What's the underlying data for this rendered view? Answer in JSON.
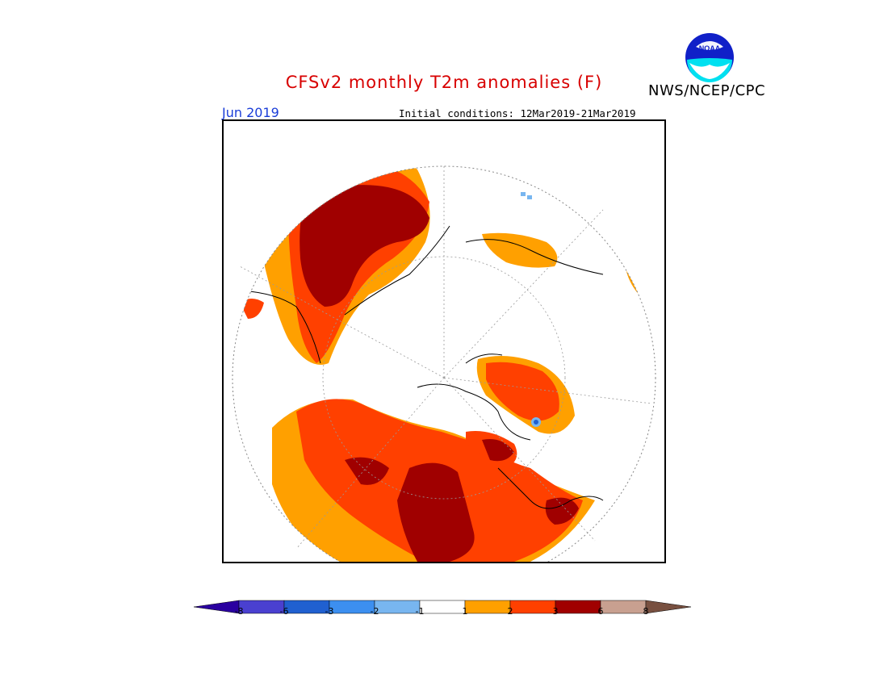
{
  "header": {
    "title": "CFSv2 monthly T2m anomalies (F)",
    "org": "NWS/NCEP/CPC",
    "period": "Jun 2019",
    "initial_conditions": "Initial conditions: 12Mar2019-21Mar2019"
  },
  "logo": {
    "text": "NOAA",
    "icon": "noaa-logo-icon"
  },
  "legend": {
    "bins": [
      {
        "color": "#2a00a0"
      },
      {
        "color": "#4a40d0"
      },
      {
        "color": "#2060d0"
      },
      {
        "color": "#3c8ff0"
      },
      {
        "color": "#78b6f0"
      },
      {
        "color": "#ffffff"
      },
      {
        "color": "#ffa000"
      },
      {
        "color": "#ff4000"
      },
      {
        "color": "#a00000"
      },
      {
        "color": "#c8a090"
      },
      {
        "color": "#785040"
      }
    ],
    "ticks": [
      "-8",
      "-6",
      "-3",
      "-2",
      "-1",
      "1",
      "2",
      "3",
      "6",
      "8"
    ]
  },
  "map": {
    "projection": "north polar stereographic",
    "anomaly_colors": {
      "light": "#ffa000",
      "medium": "#ff4000",
      "strong": "#a00000",
      "cold": "#78b6f0",
      "cold_strong": "#2060d0"
    }
  }
}
